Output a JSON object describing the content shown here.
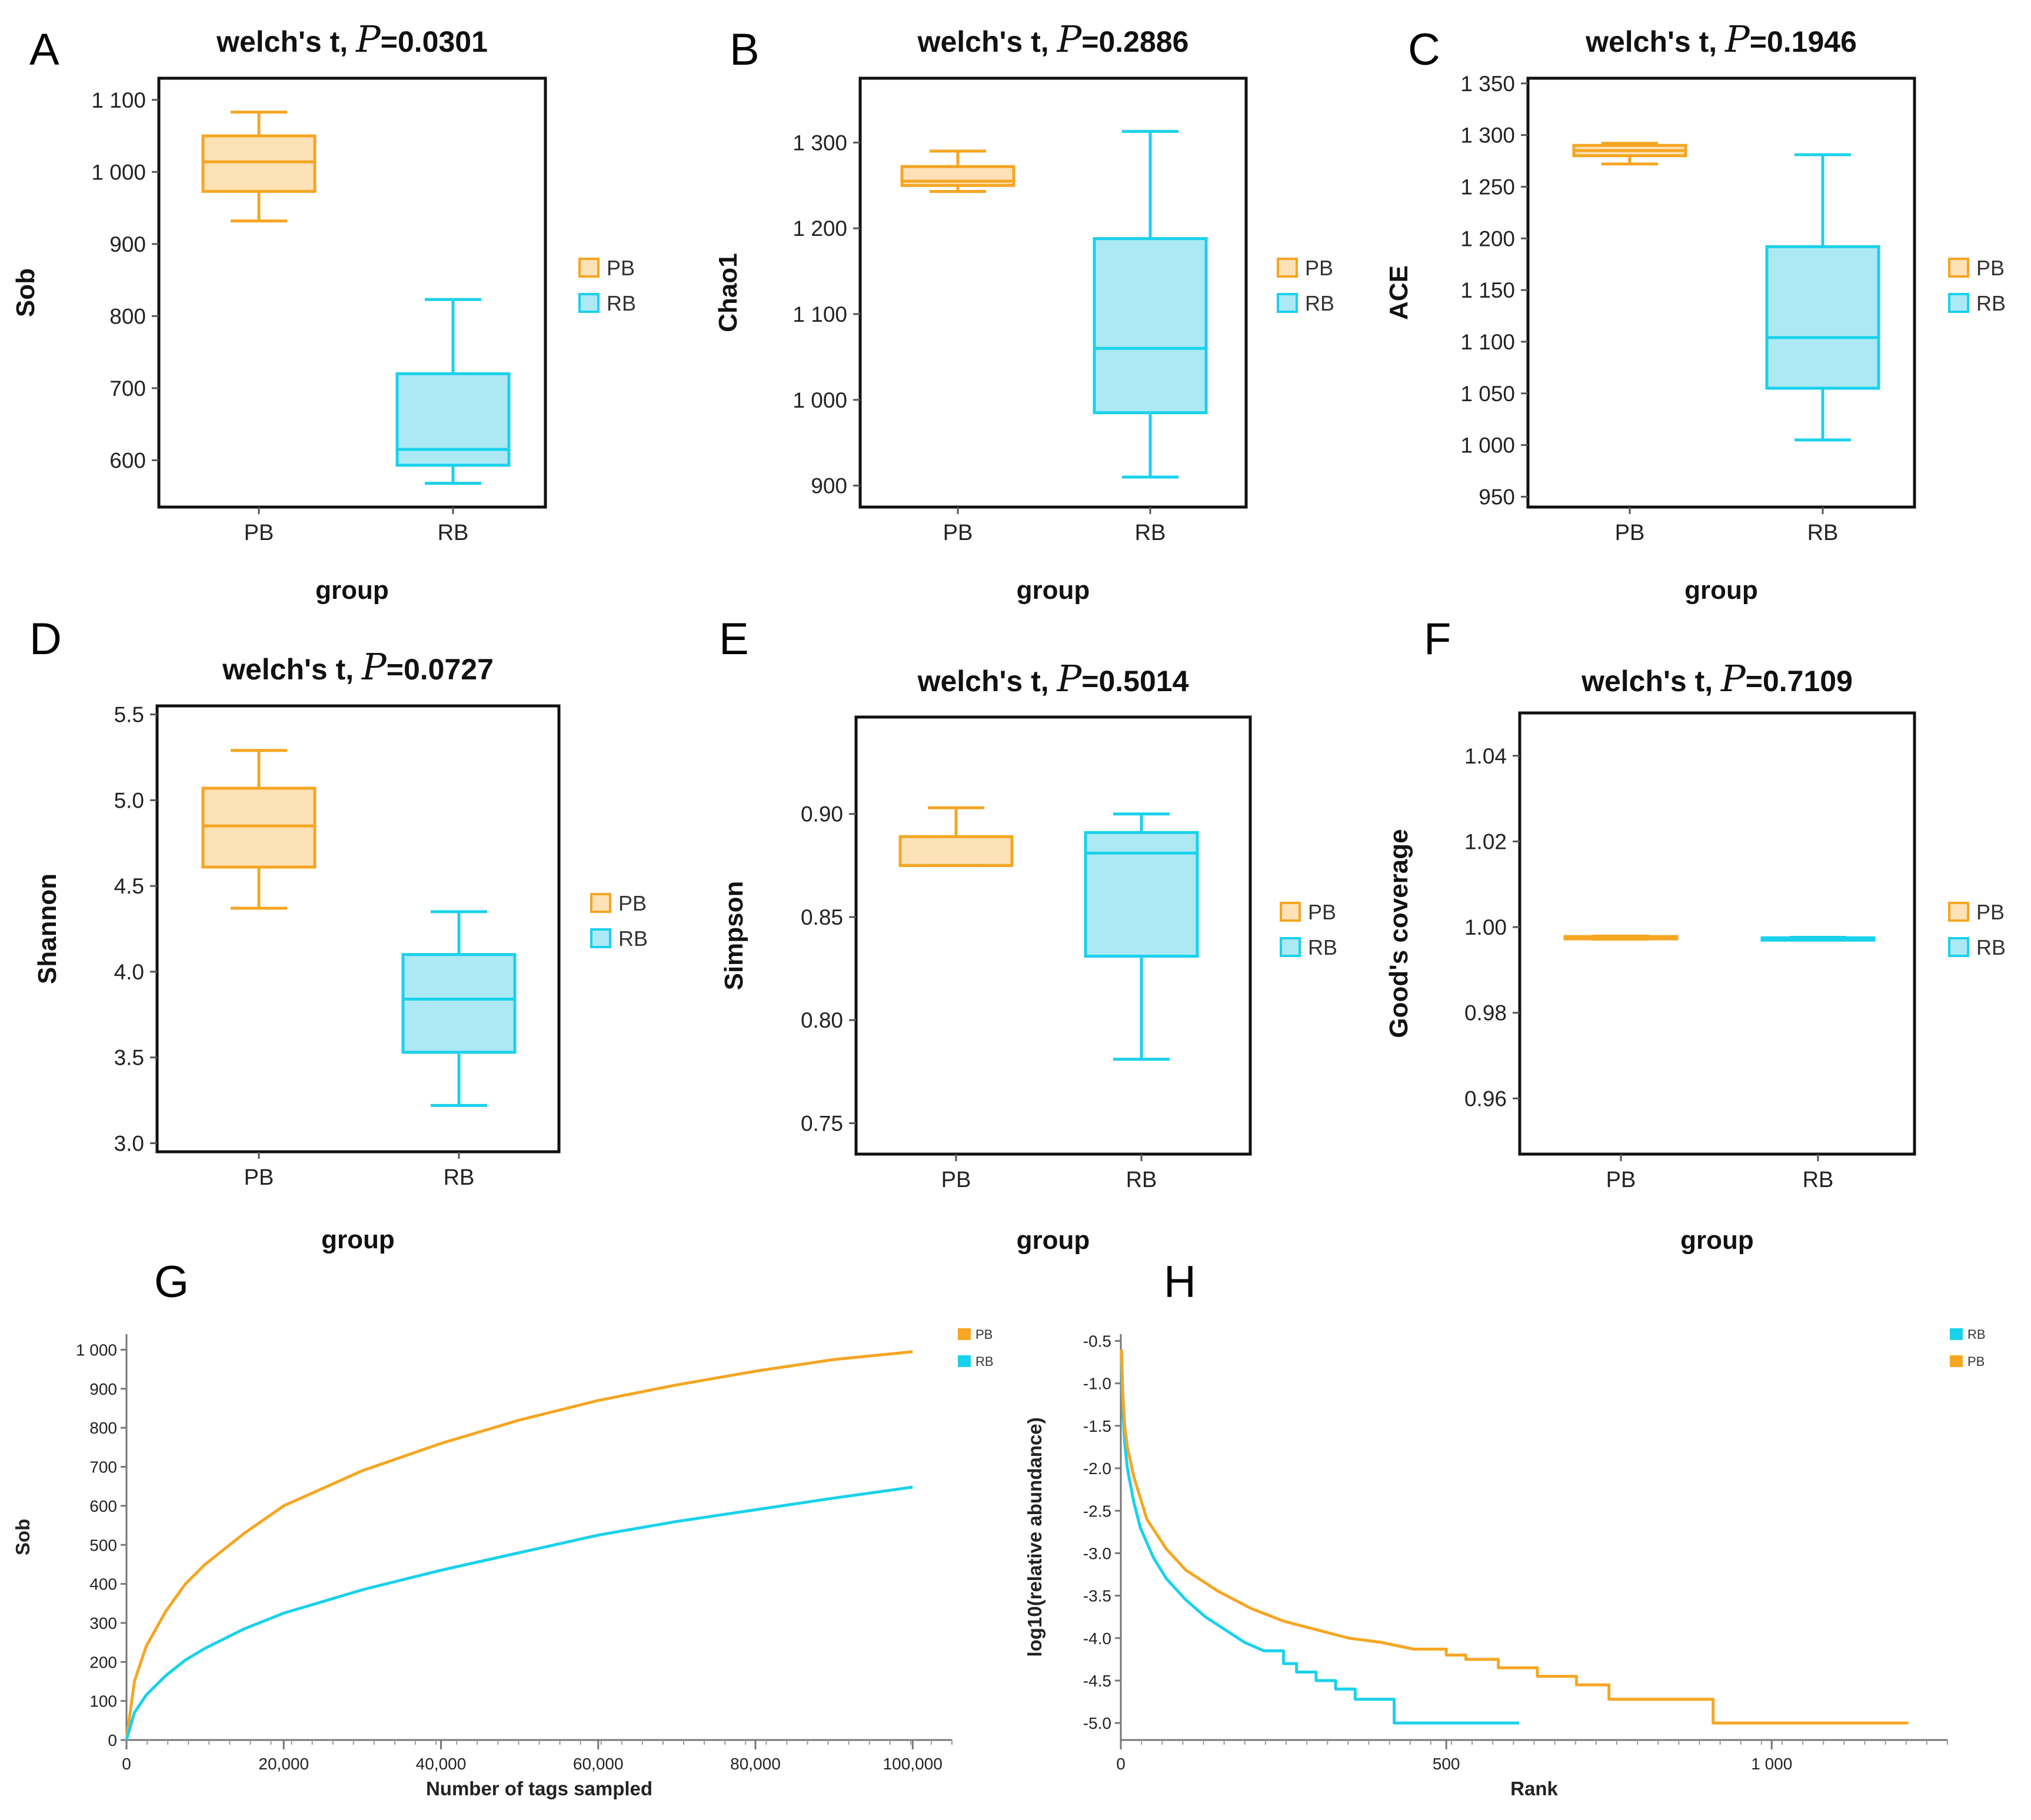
{
  "colors": {
    "PB": "#f5a623",
    "RB": "#1ad1ec",
    "PB_fill": "#fde1b7",
    "RB_fill": "#ade9f5"
  },
  "chart_data": [
    {
      "type": "boxplot",
      "label": "A",
      "title_prefix": "welch's t, ",
      "title_p": "P",
      "title_value": "=0.0301",
      "xlabel": "group",
      "ylabel": "Sob",
      "ylim": [
        535,
        1130
      ],
      "yticks": [
        600,
        700,
        800,
        900,
        1000,
        1100
      ],
      "ytick_labels": [
        "600",
        "700",
        "800",
        "900",
        "1 000",
        "1 100"
      ],
      "categories": [
        "PB",
        "RB"
      ],
      "legend": [
        "PB",
        "RB"
      ],
      "boxes": [
        {
          "group": "PB",
          "min": 932,
          "q1": 973,
          "median": 1014,
          "q3": 1050,
          "max": 1083
        },
        {
          "group": "RB",
          "min": 568,
          "q1": 593,
          "median": 615,
          "q3": 720,
          "max": 823
        }
      ]
    },
    {
      "type": "boxplot",
      "label": "B",
      "title_prefix": "welch's t, ",
      "title_p": "P",
      "title_value": "=0.2886",
      "xlabel": "group",
      "ylabel": "Chao1",
      "ylim": [
        875,
        1375
      ],
      "yticks": [
        900,
        1000,
        1100,
        1200,
        1300
      ],
      "ytick_labels": [
        "900",
        "1 000",
        "1 100",
        "1 200",
        "1 300"
      ],
      "categories": [
        "PB",
        "RB"
      ],
      "legend": [
        "PB",
        "RB"
      ],
      "boxes": [
        {
          "group": "PB",
          "min": 1243,
          "q1": 1250,
          "median": 1255,
          "q3": 1272,
          "max": 1290
        },
        {
          "group": "RB",
          "min": 910,
          "q1": 985,
          "median": 1060,
          "q3": 1188,
          "max": 1313
        }
      ]
    },
    {
      "type": "boxplot",
      "label": "C",
      "title_prefix": "welch's t, ",
      "title_p": "P",
      "title_value": "=0.1946",
      "xlabel": "group",
      "ylabel": "ACE",
      "ylim": [
        940,
        1355
      ],
      "yticks": [
        950,
        1000,
        1050,
        1100,
        1150,
        1200,
        1250,
        1300,
        1350
      ],
      "ytick_labels": [
        "950",
        "1 000",
        "1 050",
        "1 100",
        "1 150",
        "1 200",
        "1 250",
        "1 300",
        "1 350"
      ],
      "categories": [
        "PB",
        "RB"
      ],
      "legend": [
        "PB",
        "RB"
      ],
      "boxes": [
        {
          "group": "PB",
          "min": 1272,
          "q1": 1280,
          "median": 1285,
          "q3": 1290,
          "max": 1292
        },
        {
          "group": "RB",
          "min": 1005,
          "q1": 1055,
          "median": 1104,
          "q3": 1192,
          "max": 1281
        }
      ]
    },
    {
      "type": "boxplot",
      "label": "D",
      "title_prefix": "welch's t, ",
      "title_p": "P",
      "title_value": "=0.0727",
      "xlabel": "group",
      "ylabel": "Shannon",
      "ylim": [
        2.95,
        5.55
      ],
      "yticks": [
        3.0,
        3.5,
        4.0,
        4.5,
        5.0,
        5.5
      ],
      "ytick_labels": [
        "3.0",
        "3.5",
        "4.0",
        "4.5",
        "5.0",
        "5.5"
      ],
      "categories": [
        "PB",
        "RB"
      ],
      "legend": [
        "PB",
        "RB"
      ],
      "boxes": [
        {
          "group": "PB",
          "min": 4.37,
          "q1": 4.61,
          "median": 4.85,
          "q3": 5.07,
          "max": 5.29
        },
        {
          "group": "RB",
          "min": 3.22,
          "q1": 3.53,
          "median": 3.84,
          "q3": 4.1,
          "max": 4.35
        }
      ]
    },
    {
      "type": "boxplot",
      "label": "E",
      "title_prefix": "welch's t, ",
      "title_p": "P",
      "title_value": "=0.5014",
      "xlabel": "group",
      "ylabel": "Simpson",
      "ylim": [
        0.735,
        0.947
      ],
      "yticks": [
        0.75,
        0.8,
        0.85,
        0.9
      ],
      "ytick_labels": [
        "0.75",
        "0.80",
        "0.85",
        "0.90"
      ],
      "categories": [
        "PB",
        "RB"
      ],
      "legend": [
        "PB",
        "RB"
      ],
      "boxes": [
        {
          "group": "PB",
          "min": 0.875,
          "q1": 0.875,
          "median": 0.875,
          "q3": 0.889,
          "max": 0.903
        },
        {
          "group": "RB",
          "min": 0.781,
          "q1": 0.831,
          "median": 0.881,
          "q3": 0.891,
          "max": 0.9
        }
      ]
    },
    {
      "type": "boxplot",
      "label": "F",
      "title_prefix": "welch's t, ",
      "title_p": "P",
      "title_value": "=0.7109",
      "xlabel": "group",
      "ylabel": "Good's coverage",
      "ylim": [
        0.947,
        1.05
      ],
      "yticks": [
        0.96,
        0.98,
        1.0,
        1.02,
        1.04
      ],
      "ytick_labels": [
        "0.96",
        "0.98",
        "1.00",
        "1.02",
        "1.04"
      ],
      "categories": [
        "PB",
        "RB"
      ],
      "legend": [
        "PB",
        "RB"
      ],
      "boxes": [
        {
          "group": "PB",
          "min": 0.9972,
          "q1": 0.9974,
          "median": 0.9976,
          "q3": 0.9978,
          "max": 0.9979
        },
        {
          "group": "RB",
          "min": 0.9972,
          "q1": 0.9973,
          "median": 0.9974,
          "q3": 0.9975,
          "max": 0.9976
        }
      ]
    },
    {
      "type": "line",
      "label": "G",
      "xlabel": "Number of tags sampled",
      "ylabel": "Sob",
      "xlim": [
        0,
        105000
      ],
      "ylim": [
        0,
        1040
      ],
      "xticks": [
        0,
        20000,
        40000,
        60000,
        80000,
        100000
      ],
      "xtick_labels": [
        "0",
        "20,000",
        "40,000",
        "60,000",
        "80,000",
        "100,000"
      ],
      "yticks": [
        0,
        100,
        200,
        300,
        400,
        500,
        600,
        700,
        800,
        900,
        1000
      ],
      "ytick_labels": [
        "0",
        "100",
        "200",
        "300",
        "400",
        "500",
        "600",
        "700",
        "800",
        "900",
        "1 000"
      ],
      "legend": [
        "PB",
        "RB"
      ],
      "series": [
        {
          "name": "PB",
          "x": [
            0,
            1000,
            2500,
            5000,
            7500,
            10000,
            15000,
            20000,
            30000,
            40000,
            50000,
            60000,
            70000,
            80000,
            90000,
            100000
          ],
          "y": [
            0,
            150,
            240,
            330,
            400,
            450,
            530,
            600,
            690,
            760,
            820,
            870,
            910,
            945,
            975,
            995
          ]
        },
        {
          "name": "RB",
          "x": [
            0,
            1000,
            2500,
            5000,
            7500,
            10000,
            15000,
            20000,
            30000,
            40000,
            50000,
            60000,
            70000,
            80000,
            90000,
            100000
          ],
          "y": [
            0,
            70,
            115,
            165,
            205,
            235,
            285,
            325,
            385,
            435,
            480,
            525,
            560,
            590,
            620,
            648
          ]
        }
      ]
    },
    {
      "type": "line",
      "label": "H",
      "xlabel": "Rank",
      "ylabel": "log10(relative abundance)",
      "xlim": [
        0,
        1270
      ],
      "ylim": [
        -5.2,
        -0.42
      ],
      "xticks": [
        0,
        500,
        1000
      ],
      "xtick_labels": [
        "0",
        "500",
        "1 000"
      ],
      "yticks": [
        -0.5,
        -1.0,
        -1.5,
        -2.0,
        -2.5,
        -3.0,
        -3.5,
        -4.0,
        -4.5,
        -5.0
      ],
      "ytick_labels": [
        "-0.5",
        "-1.0",
        "-1.5",
        "-2.0",
        "-2.5",
        "-3.0",
        "-3.5",
        "-4.0",
        "-4.5",
        "-5.0"
      ],
      "legend": [
        "RB",
        "PB"
      ],
      "series": [
        {
          "name": "RB",
          "x": [
            1,
            3,
            6,
            10,
            20,
            30,
            50,
            70,
            100,
            130,
            160,
            190,
            220,
            250,
            270,
            300,
            330,
            360,
            410,
            420,
            612
          ],
          "y": [
            -0.7,
            -1.3,
            -1.7,
            -2.0,
            -2.4,
            -2.7,
            -3.05,
            -3.3,
            -3.55,
            -3.75,
            -3.9,
            -4.05,
            -4.15,
            -4.3,
            -4.4,
            -4.5,
            -4.6,
            -4.72,
            -4.72,
            -5.0,
            -5.0
          ]
        },
        {
          "name": "PB",
          "x": [
            1,
            3,
            6,
            10,
            20,
            40,
            70,
            100,
            150,
            200,
            250,
            300,
            350,
            400,
            450,
            500,
            530,
            580,
            640,
            700,
            750,
            800,
            900,
            910,
            1210
          ],
          "y": [
            -0.6,
            -1.1,
            -1.5,
            -1.75,
            -2.1,
            -2.6,
            -2.95,
            -3.2,
            -3.45,
            -3.65,
            -3.8,
            -3.9,
            -4.0,
            -4.05,
            -4.13,
            -4.2,
            -4.25,
            -4.35,
            -4.45,
            -4.55,
            -4.72,
            -4.72,
            -4.72,
            -5.0,
            -5.0
          ]
        }
      ]
    }
  ]
}
